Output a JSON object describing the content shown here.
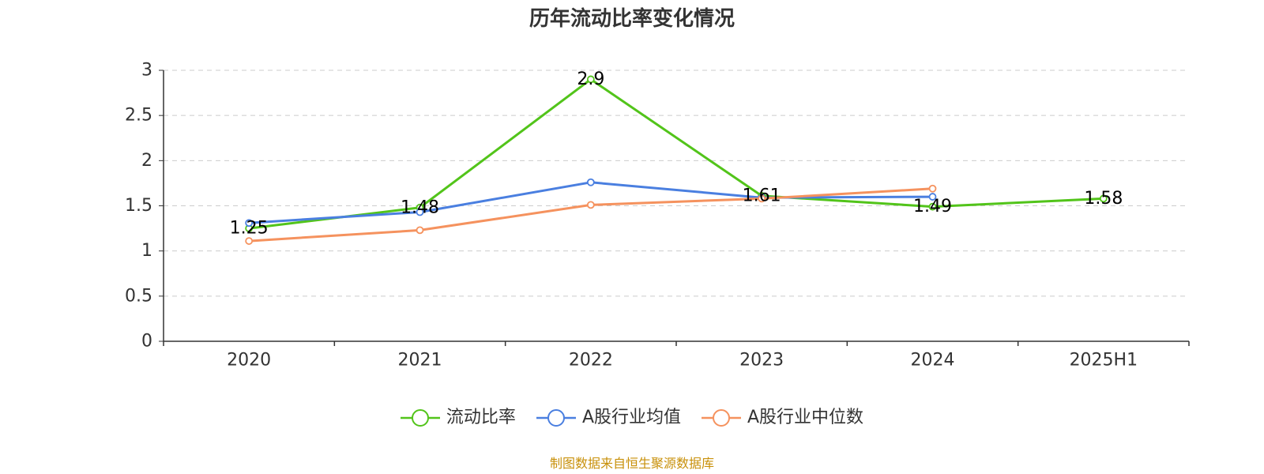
{
  "chart_data": {
    "type": "line",
    "title": "历年流动比率变化情况",
    "categories": [
      "2020",
      "2021",
      "2022",
      "2023",
      "2024",
      "2025H1"
    ],
    "ylim": [
      0,
      3
    ],
    "yticks": [
      "0",
      "0.5",
      "1",
      "1.5",
      "2",
      "2.5",
      "3"
    ],
    "ytick_values": [
      0,
      0.5,
      1,
      1.5,
      2,
      2.5,
      3
    ],
    "grid": true,
    "legend_position": "bottom-center",
    "series": [
      {
        "name": "流动比率",
        "color": "#52c41a",
        "values": [
          1.25,
          1.48,
          2.9,
          1.61,
          1.49,
          1.58
        ],
        "labels": [
          "1.25",
          "1.48",
          "2.9",
          "1.61",
          "1.49",
          "1.58"
        ]
      },
      {
        "name": "A股行业均值",
        "color": "#4a7fe0",
        "values": [
          1.31,
          1.43,
          1.76,
          1.59,
          1.6,
          null
        ]
      },
      {
        "name": "A股行业中位数",
        "color": "#f5925e",
        "values": [
          1.11,
          1.23,
          1.51,
          1.58,
          1.69,
          null
        ]
      }
    ]
  },
  "source": "制图数据来自恒生聚源数据库"
}
